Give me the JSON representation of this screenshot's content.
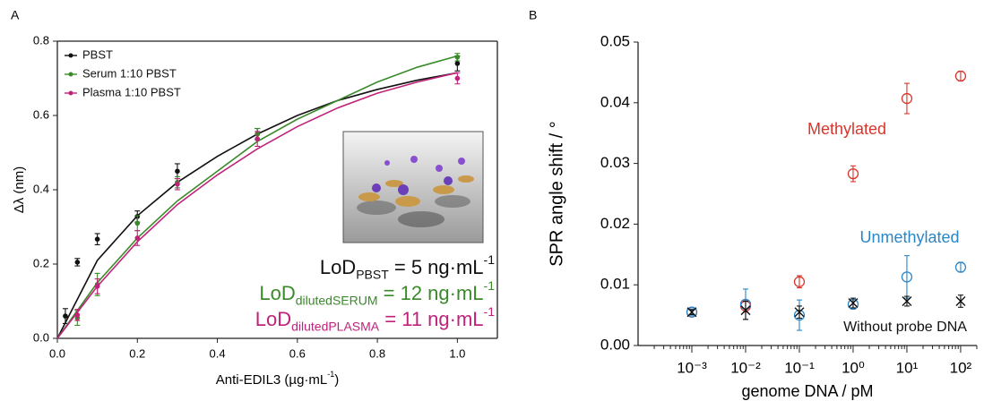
{
  "chart_data": [
    {
      "type": "scatter",
      "panel_label": "A",
      "xlim": [
        0,
        1.1
      ],
      "ylim": [
        0,
        0.8
      ],
      "xticks": [
        {
          "value": 0,
          "label": "0.0"
        },
        {
          "value": 0.2,
          "label": "0.2"
        },
        {
          "value": 0.4,
          "label": "0.4"
        },
        {
          "value": 0.6,
          "label": "0.6"
        },
        {
          "value": 0.8,
          "label": "0.8"
        },
        {
          "value": 1.0,
          "label": "1.0"
        }
      ],
      "yticks": [
        {
          "value": 0,
          "label": "0.0"
        },
        {
          "value": 0.2,
          "label": "0.2"
        },
        {
          "value": 0.4,
          "label": "0.4"
        },
        {
          "value": 0.6,
          "label": "0.6"
        },
        {
          "value": 0.8,
          "label": "0.8"
        }
      ],
      "x_label": {
        "text": "Anti-EDIL3 (µg·mL",
        "sup": "-1",
        "end": ")"
      },
      "y_label": "Δλ (nm)",
      "legend": "upper left",
      "series": [
        {
          "name": "PBST",
          "color": "#111111",
          "marker": "dot",
          "x": [
            0.02,
            0.05,
            0.1,
            0.2,
            0.3,
            0.5,
            1.0
          ],
          "values": [
            0.06,
            0.205,
            0.267,
            0.328,
            0.45,
            0.55,
            0.74
          ],
          "errors": [
            0.02,
            0.01,
            0.015,
            0.015,
            0.02,
            0.015,
            0.02
          ],
          "fit": {
            "x": [
              0,
              0.1,
              0.2,
              0.3,
              0.4,
              0.5,
              0.6,
              0.7,
              0.8,
              0.9,
              1.0
            ],
            "values": [
              0,
              0.21,
              0.33,
              0.42,
              0.49,
              0.55,
              0.6,
              0.64,
              0.67,
              0.695,
              0.715
            ]
          }
        },
        {
          "name": "Serum 1:10 PBST",
          "color": "#3a8a2a",
          "marker": "dot",
          "x": [
            0.05,
            0.1,
            0.2,
            0.3,
            0.5,
            1.0
          ],
          "values": [
            0.055,
            0.145,
            0.31,
            0.42,
            0.55,
            0.757
          ],
          "errors": [
            0.02,
            0.03,
            0.02,
            0.015,
            0.015,
            0.01
          ],
          "fit": {
            "x": [
              0,
              0.1,
              0.2,
              0.3,
              0.4,
              0.5,
              0.6,
              0.7,
              0.8,
              0.9,
              1.0
            ],
            "values": [
              0,
              0.15,
              0.27,
              0.37,
              0.45,
              0.53,
              0.59,
              0.64,
              0.69,
              0.73,
              0.76
            ]
          }
        },
        {
          "name": "Plasma 1:10  PBST",
          "color": "#c0227a",
          "marker": "dot",
          "x": [
            0.05,
            0.1,
            0.2,
            0.3,
            0.5,
            1.0
          ],
          "values": [
            0.063,
            0.14,
            0.27,
            0.415,
            0.537,
            0.7
          ],
          "errors": [
            0.015,
            0.02,
            0.02,
            0.015,
            0.02,
            0.015
          ],
          "fit": {
            "x": [
              0,
              0.1,
              0.2,
              0.3,
              0.4,
              0.5,
              0.6,
              0.7,
              0.8,
              0.9,
              1.0
            ],
            "values": [
              0,
              0.14,
              0.26,
              0.36,
              0.44,
              0.51,
              0.57,
              0.62,
              0.66,
              0.69,
              0.715
            ]
          }
        }
      ],
      "annotations": [
        {
          "text": "LoD",
          "sub": "PBST",
          "rest": " = 5 ng·mL",
          "sup": "-1",
          "color": "#111111"
        },
        {
          "text": "LoD",
          "sub": "dilutedSERUM",
          "rest": " = 12 ng·mL",
          "sup": "-1",
          "color": "#3a8a2a"
        },
        {
          "text": "LoD",
          "sub": "dilutedPLASMA",
          "rest": " = 11 ng·mL",
          "sup": "-1",
          "color": "#c0227a"
        }
      ]
    },
    {
      "type": "scatter",
      "panel_label": "B",
      "xscale": "log",
      "xlim": [
        0.0001,
        200
      ],
      "ylim": [
        0,
        0.05
      ],
      "xticks": [
        {
          "value": 0.001,
          "label": "10⁻³"
        },
        {
          "value": 0.01,
          "label": "10⁻²"
        },
        {
          "value": 0.1,
          "label": "10⁻¹"
        },
        {
          "value": 1,
          "label": "10⁰"
        },
        {
          "value": 10,
          "label": "10¹"
        },
        {
          "value": 100,
          "label": "10²"
        }
      ],
      "yticks": [
        {
          "value": 0,
          "label": "0.00"
        },
        {
          "value": 0.01,
          "label": "0.01"
        },
        {
          "value": 0.02,
          "label": "0.02"
        },
        {
          "value": 0.03,
          "label": "0.03"
        },
        {
          "value": 0.04,
          "label": "0.04"
        },
        {
          "value": 0.05,
          "label": "0.05"
        }
      ],
      "x_label": {
        "text": "genome  DNA / pM"
      },
      "y_label": "SPR angle shift / °",
      "series": [
        {
          "name": "Methylated",
          "color": "#d9342b",
          "marker": "circle",
          "x": [
            0.001,
            0.01,
            0.1,
            1,
            10,
            100
          ],
          "values": [
            0.0055,
            0.0065,
            0.0105,
            0.0283,
            0.0407,
            0.0444
          ],
          "errors": [
            0.0005,
            0.001,
            0.001,
            0.0013,
            0.0025,
            0.0008
          ]
        },
        {
          "name": "Unmethylated",
          "color": "#2b86c5",
          "marker": "circle",
          "x": [
            0.001,
            0.01,
            0.1,
            1,
            10,
            100
          ],
          "values": [
            0.0055,
            0.0068,
            0.005,
            0.0068,
            0.0113,
            0.0129
          ],
          "errors": [
            0.0005,
            0.0025,
            0.0025,
            0.0008,
            0.0035,
            0.0008
          ]
        },
        {
          "name": "Without probe DNA",
          "color": "#111111",
          "marker": "x",
          "x": [
            0.001,
            0.01,
            0.1,
            1,
            10,
            100
          ],
          "values": [
            0.0055,
            0.0058,
            0.0055,
            0.007,
            0.0073,
            0.0073
          ],
          "errors": [
            0.0004,
            0.0015,
            0.001,
            0.0008,
            0.0008,
            0.001
          ]
        }
      ]
    }
  ]
}
